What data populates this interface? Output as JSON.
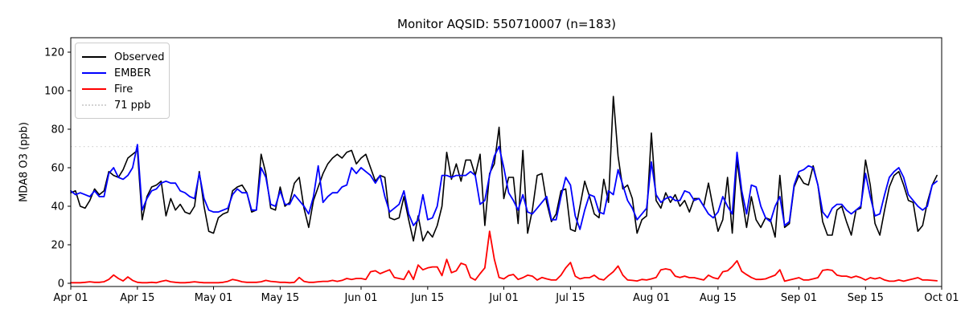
{
  "title": "Monitor AQSID: 550710007 (n=183)",
  "chart_data": {
    "type": "line",
    "title": "Monitor AQSID: 550710007 (n=183)",
    "xlabel": "",
    "ylabel": "MDA8 O3 (ppb)",
    "ylim": [
      -1.67,
      127.5
    ],
    "yticks": [
      0,
      20,
      40,
      60,
      80,
      100,
      120
    ],
    "n_days": 183,
    "grid": false,
    "legend_position": "upper left",
    "x_ticks": [
      {
        "day": 0,
        "label": "Apr 01"
      },
      {
        "day": 14,
        "label": "Apr 15"
      },
      {
        "day": 30,
        "label": "May 01"
      },
      {
        "day": 44,
        "label": "May 15"
      },
      {
        "day": 61,
        "label": "Jun 01"
      },
      {
        "day": 75,
        "label": "Jun 15"
      },
      {
        "day": 91,
        "label": "Jul 01"
      },
      {
        "day": 105,
        "label": "Jul 15"
      },
      {
        "day": 122,
        "label": "Aug 01"
      },
      {
        "day": 136,
        "label": "Aug 15"
      },
      {
        "day": 153,
        "label": "Sep 01"
      },
      {
        "day": 167,
        "label": "Sep 15"
      },
      {
        "day": 183,
        "label": "Oct 01"
      }
    ],
    "threshold": {
      "label": "71 ppb",
      "value": 71,
      "color": "#d3d3d3",
      "style": "dotted"
    },
    "legend_items": [
      {
        "label": "Observed",
        "color": "#000000",
        "style": "solid"
      },
      {
        "label": "EMBER",
        "color": "#0000ff",
        "style": "solid"
      },
      {
        "label": "Fire",
        "color": "#ff0000",
        "style": "solid"
      },
      {
        "label": "71 ppb",
        "color": "#d3d3d3",
        "style": "dotted"
      }
    ],
    "series": [
      {
        "name": "Observed",
        "color": "#000000",
        "width": 1.6,
        "values": [
          47,
          48,
          40,
          39,
          43,
          49,
          46,
          48,
          58,
          56,
          55,
          59,
          65,
          67,
          69,
          33,
          45,
          50,
          51,
          53,
          35,
          44,
          38,
          41,
          37,
          36,
          40,
          58,
          40,
          27,
          26,
          34,
          36,
          37,
          48,
          50,
          51,
          47,
          37,
          38,
          67,
          57,
          39,
          38,
          50,
          40,
          42,
          52,
          55,
          39,
          29,
          43,
          50,
          57,
          62,
          65,
          67,
          65,
          68,
          69,
          62,
          65,
          67,
          60,
          53,
          56,
          55,
          34,
          33,
          34,
          45,
          33,
          22,
          35,
          22,
          27,
          24,
          30,
          40,
          68,
          54,
          62,
          53,
          64,
          64,
          56,
          67,
          30,
          57,
          62,
          81,
          44,
          55,
          55,
          31,
          69,
          26,
          38,
          56,
          57,
          42,
          32,
          36,
          48,
          49,
          28,
          27,
          40,
          53,
          45,
          36,
          34,
          54,
          42,
          97,
          66,
          49,
          51,
          44,
          26,
          33,
          35,
          78,
          43,
          39,
          47,
          42,
          46,
          40,
          43,
          37,
          44,
          44,
          40,
          52,
          39,
          27,
          33,
          55,
          26,
          64,
          45,
          29,
          45,
          33,
          29,
          34,
          33,
          24,
          56,
          29,
          31,
          50,
          56,
          52,
          51,
          61,
          51,
          32,
          25,
          25,
          38,
          40,
          32,
          25,
          38,
          39,
          64,
          51,
          31,
          25,
          38,
          50,
          56,
          58,
          51,
          43,
          42,
          27,
          30,
          42,
          51,
          56
        ]
      },
      {
        "name": "EMBER",
        "color": "#0000ff",
        "width": 1.8,
        "values": [
          48,
          46,
          47,
          46,
          45,
          48,
          45,
          45,
          57,
          60,
          55,
          54,
          56,
          60,
          72,
          38,
          44,
          48,
          49,
          52,
          53,
          52,
          52,
          48,
          47,
          45,
          44,
          57,
          44,
          38,
          37,
          37,
          38,
          39,
          46,
          49,
          47,
          47,
          38,
          38,
          60,
          55,
          41,
          40,
          48,
          41,
          41,
          46,
          43,
          40,
          36,
          45,
          61,
          42,
          45,
          47,
          47,
          50,
          51,
          60,
          57,
          60,
          58,
          56,
          52,
          56,
          45,
          37,
          39,
          41,
          48,
          36,
          30,
          33,
          46,
          33,
          34,
          40,
          56,
          56,
          55,
          56,
          56,
          56,
          58,
          56,
          41,
          43,
          56,
          66,
          71,
          60,
          47,
          43,
          38,
          46,
          37,
          36,
          39,
          42,
          45,
          33,
          33,
          45,
          55,
          51,
          35,
          28,
          38,
          46,
          45,
          37,
          36,
          48,
          46,
          59,
          51,
          43,
          39,
          33,
          36,
          39,
          63,
          46,
          42,
          44,
          45,
          43,
          43,
          48,
          47,
          43,
          44,
          40,
          36,
          34,
          37,
          45,
          40,
          36,
          68,
          48,
          36,
          51,
          50,
          40,
          34,
          32,
          40,
          45,
          30,
          32,
          51,
          58,
          59,
          61,
          60,
          51,
          37,
          34,
          39,
          41,
          41,
          38,
          36,
          38,
          40,
          57,
          45,
          35,
          36,
          46,
          55,
          58,
          60,
          55,
          46,
          43,
          40,
          38,
          40,
          51,
          53
        ]
      },
      {
        "name": "Fire",
        "color": "#ff0000",
        "width": 1.8,
        "values": [
          0.3,
          0.3,
          0.3,
          0.5,
          0.8,
          0.5,
          0.5,
          0.8,
          2,
          4.3,
          2.5,
          1.2,
          3.3,
          1.5,
          0.5,
          0.3,
          0.3,
          0.5,
          0.3,
          1,
          1.5,
          0.8,
          0.5,
          0.3,
          0.3,
          0.5,
          0.8,
          0.5,
          0.3,
          0.3,
          0.3,
          0.3,
          0.5,
          1,
          2,
          1.5,
          0.8,
          0.5,
          0.5,
          0.5,
          0.8,
          1.5,
          1,
          0.8,
          0.5,
          0.5,
          0.3,
          0.5,
          3,
          1,
          0.5,
          0.5,
          0.8,
          1,
          1,
          1.5,
          1,
          1.5,
          2.5,
          2,
          2.5,
          2.5,
          2,
          6,
          6.5,
          5,
          6,
          7,
          3,
          2.5,
          2,
          6.5,
          2,
          9.5,
          7,
          8,
          8.5,
          8.5,
          4,
          12.4,
          5.5,
          6.5,
          10.4,
          9.5,
          3,
          1.7,
          5,
          8,
          27,
          12.5,
          3,
          2.3,
          4,
          4.6,
          2,
          2.9,
          4.2,
          3.7,
          1.7,
          3,
          2.3,
          1.7,
          1.7,
          4.2,
          8,
          10.8,
          3.7,
          2.3,
          2.9,
          2.9,
          4.2,
          2.3,
          1.7,
          4,
          6,
          9,
          4.2,
          1.7,
          1.5,
          1.2,
          2,
          1.7,
          2.3,
          3,
          7,
          7.5,
          7,
          3.7,
          3,
          3.7,
          2.9,
          2.9,
          2.3,
          1.7,
          4.2,
          2.9,
          2.3,
          6,
          6.5,
          8.7,
          11.7,
          6.2,
          4.5,
          3,
          2,
          2,
          2.3,
          3.3,
          4.2,
          7,
          1.1,
          1.7,
          2.3,
          2.9,
          1.7,
          1.7,
          2.3,
          2.9,
          6.7,
          7.1,
          6.7,
          4.2,
          3.7,
          3.7,
          2.9,
          3.7,
          2.9,
          1.7,
          2.9,
          2.3,
          2.9,
          1.7,
          1.1,
          1.1,
          1.7,
          1.1,
          1.7,
          2.3,
          2.9,
          1.7,
          1.7,
          1.5,
          1.3
        ]
      }
    ]
  }
}
